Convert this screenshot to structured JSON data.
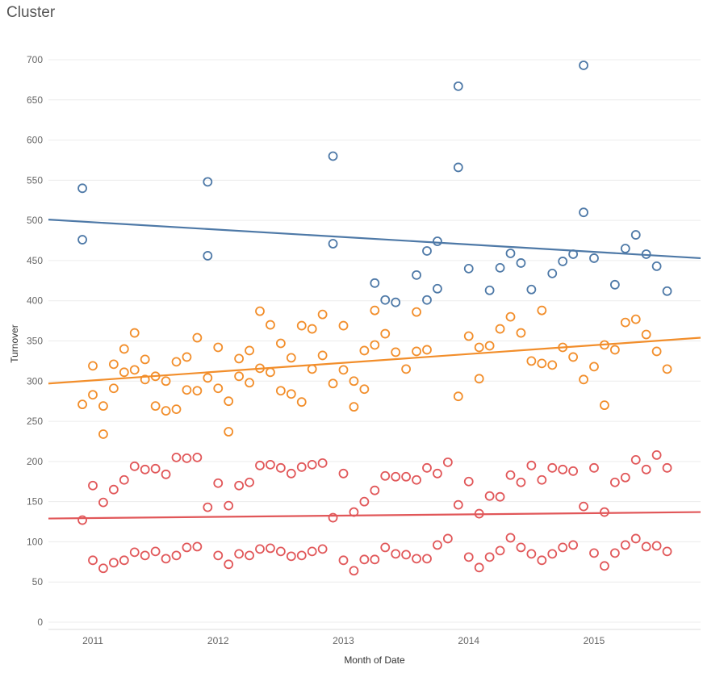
{
  "chart_data": {
    "type": "scatter",
    "title": "Cluster",
    "xlabel": "Month of Date",
    "ylabel": "Turnover",
    "ylim": [
      0,
      700
    ],
    "yticks": [
      0,
      50,
      100,
      150,
      200,
      250,
      300,
      350,
      400,
      450,
      500,
      550,
      600,
      650,
      700
    ],
    "xlim": [
      "2010-08",
      "2015-11"
    ],
    "xticks": [
      "2011",
      "2012",
      "2013",
      "2014",
      "2015"
    ],
    "grid": true,
    "legend": "none",
    "series": [
      {
        "color": "#4e79a7",
        "points": [
          [
            "2010-12",
            540
          ],
          [
            "2010-12",
            476
          ],
          [
            "2011-12",
            548
          ],
          [
            "2011-12",
            456
          ],
          [
            "2012-12",
            580
          ],
          [
            "2012-12",
            471
          ],
          [
            "2013-04",
            422
          ],
          [
            "2013-05",
            401
          ],
          [
            "2013-06",
            398
          ],
          [
            "2013-08",
            432
          ],
          [
            "2013-09",
            401
          ],
          [
            "2013-09",
            462
          ],
          [
            "2013-10",
            474
          ],
          [
            "2013-10",
            415
          ],
          [
            "2013-12",
            667
          ],
          [
            "2013-12",
            566
          ],
          [
            "2014-01",
            440
          ],
          [
            "2014-03",
            413
          ],
          [
            "2014-04",
            441
          ],
          [
            "2014-05",
            459
          ],
          [
            "2014-06",
            447
          ],
          [
            "2014-07",
            414
          ],
          [
            "2014-09",
            434
          ],
          [
            "2014-10",
            449
          ],
          [
            "2014-11",
            458
          ],
          [
            "2014-12",
            693
          ],
          [
            "2014-12",
            510
          ],
          [
            "2015-01",
            453
          ],
          [
            "2015-03",
            420
          ],
          [
            "2015-04",
            465
          ],
          [
            "2015-05",
            482
          ],
          [
            "2015-06",
            458
          ],
          [
            "2015-07",
            443
          ],
          [
            "2015-08",
            412
          ]
        ],
        "trend": [
          501,
          453
        ]
      },
      {
        "color": "#f28e2b",
        "points": [
          [
            "2010-12",
            271
          ],
          [
            "2011-01",
            319
          ],
          [
            "2011-01",
            283
          ],
          [
            "2011-02",
            269
          ],
          [
            "2011-02",
            234
          ],
          [
            "2011-03",
            321
          ],
          [
            "2011-03",
            291
          ],
          [
            "2011-04",
            340
          ],
          [
            "2011-04",
            311
          ],
          [
            "2011-05",
            360
          ],
          [
            "2011-05",
            314
          ],
          [
            "2011-06",
            327
          ],
          [
            "2011-06",
            302
          ],
          [
            "2011-07",
            306
          ],
          [
            "2011-07",
            269
          ],
          [
            "2011-08",
            300
          ],
          [
            "2011-08",
            263
          ],
          [
            "2011-09",
            324
          ],
          [
            "2011-09",
            265
          ],
          [
            "2011-10",
            330
          ],
          [
            "2011-10",
            289
          ],
          [
            "2011-11",
            354
          ],
          [
            "2011-11",
            288
          ],
          [
            "2011-12",
            304
          ],
          [
            "2012-01",
            342
          ],
          [
            "2012-01",
            291
          ],
          [
            "2012-02",
            275
          ],
          [
            "2012-02",
            237
          ],
          [
            "2012-03",
            328
          ],
          [
            "2012-03",
            306
          ],
          [
            "2012-04",
            338
          ],
          [
            "2012-04",
            298
          ],
          [
            "2012-05",
            387
          ],
          [
            "2012-05",
            316
          ],
          [
            "2012-06",
            370
          ],
          [
            "2012-06",
            311
          ],
          [
            "2012-07",
            347
          ],
          [
            "2012-07",
            288
          ],
          [
            "2012-08",
            329
          ],
          [
            "2012-08",
            284
          ],
          [
            "2012-09",
            369
          ],
          [
            "2012-09",
            274
          ],
          [
            "2012-10",
            365
          ],
          [
            "2012-10",
            315
          ],
          [
            "2012-11",
            383
          ],
          [
            "2012-11",
            332
          ],
          [
            "2012-12",
            297
          ],
          [
            "2013-01",
            369
          ],
          [
            "2013-01",
            314
          ],
          [
            "2013-02",
            300
          ],
          [
            "2013-02",
            268
          ],
          [
            "2013-03",
            338
          ],
          [
            "2013-03",
            290
          ],
          [
            "2013-04",
            388
          ],
          [
            "2013-04",
            345
          ],
          [
            "2013-05",
            359
          ],
          [
            "2013-06",
            336
          ],
          [
            "2013-07",
            315
          ],
          [
            "2013-08",
            386
          ],
          [
            "2013-08",
            337
          ],
          [
            "2013-09",
            339
          ],
          [
            "2013-12",
            281
          ],
          [
            "2014-01",
            356
          ],
          [
            "2014-02",
            342
          ],
          [
            "2014-02",
            303
          ],
          [
            "2014-03",
            344
          ],
          [
            "2014-04",
            365
          ],
          [
            "2014-05",
            380
          ],
          [
            "2014-06",
            360
          ],
          [
            "2014-07",
            325
          ],
          [
            "2014-08",
            388
          ],
          [
            "2014-08",
            322
          ],
          [
            "2014-09",
            320
          ],
          [
            "2014-10",
            342
          ],
          [
            "2014-11",
            330
          ],
          [
            "2014-12",
            302
          ],
          [
            "2015-01",
            318
          ],
          [
            "2015-02",
            345
          ],
          [
            "2015-02",
            270
          ],
          [
            "2015-03",
            339
          ],
          [
            "2015-04",
            373
          ],
          [
            "2015-05",
            377
          ],
          [
            "2015-06",
            358
          ],
          [
            "2015-07",
            337
          ],
          [
            "2015-08",
            315
          ]
        ],
        "trend": [
          297,
          354
        ]
      },
      {
        "color": "#e15759",
        "points": [
          [
            "2010-12",
            127
          ],
          [
            "2011-01",
            170
          ],
          [
            "2011-01",
            77
          ],
          [
            "2011-02",
            149
          ],
          [
            "2011-02",
            67
          ],
          [
            "2011-03",
            165
          ],
          [
            "2011-03",
            74
          ],
          [
            "2011-04",
            177
          ],
          [
            "2011-04",
            77
          ],
          [
            "2011-05",
            194
          ],
          [
            "2011-05",
            87
          ],
          [
            "2011-06",
            190
          ],
          [
            "2011-06",
            83
          ],
          [
            "2011-07",
            191
          ],
          [
            "2011-07",
            88
          ],
          [
            "2011-08",
            184
          ],
          [
            "2011-08",
            79
          ],
          [
            "2011-09",
            205
          ],
          [
            "2011-09",
            83
          ],
          [
            "2011-10",
            204
          ],
          [
            "2011-10",
            93
          ],
          [
            "2011-11",
            205
          ],
          [
            "2011-11",
            94
          ],
          [
            "2011-12",
            143
          ],
          [
            "2012-01",
            173
          ],
          [
            "2012-01",
            83
          ],
          [
            "2012-02",
            145
          ],
          [
            "2012-02",
            72
          ],
          [
            "2012-03",
            170
          ],
          [
            "2012-03",
            85
          ],
          [
            "2012-04",
            174
          ],
          [
            "2012-04",
            83
          ],
          [
            "2012-05",
            195
          ],
          [
            "2012-05",
            91
          ],
          [
            "2012-06",
            196
          ],
          [
            "2012-06",
            92
          ],
          [
            "2012-07",
            192
          ],
          [
            "2012-07",
            88
          ],
          [
            "2012-08",
            185
          ],
          [
            "2012-08",
            82
          ],
          [
            "2012-09",
            193
          ],
          [
            "2012-09",
            83
          ],
          [
            "2012-10",
            196
          ],
          [
            "2012-10",
            88
          ],
          [
            "2012-11",
            198
          ],
          [
            "2012-11",
            91
          ],
          [
            "2012-12",
            130
          ],
          [
            "2013-01",
            185
          ],
          [
            "2013-01",
            77
          ],
          [
            "2013-02",
            137
          ],
          [
            "2013-02",
            64
          ],
          [
            "2013-03",
            150
          ],
          [
            "2013-03",
            78
          ],
          [
            "2013-04",
            164
          ],
          [
            "2013-04",
            78
          ],
          [
            "2013-05",
            182
          ],
          [
            "2013-05",
            93
          ],
          [
            "2013-06",
            181
          ],
          [
            "2013-06",
            85
          ],
          [
            "2013-07",
            181
          ],
          [
            "2013-07",
            84
          ],
          [
            "2013-08",
            177
          ],
          [
            "2013-08",
            79
          ],
          [
            "2013-09",
            192
          ],
          [
            "2013-09",
            79
          ],
          [
            "2013-10",
            185
          ],
          [
            "2013-10",
            96
          ],
          [
            "2013-11",
            199
          ],
          [
            "2013-11",
            104
          ],
          [
            "2013-12",
            146
          ],
          [
            "2014-01",
            175
          ],
          [
            "2014-01",
            81
          ],
          [
            "2014-02",
            135
          ],
          [
            "2014-02",
            68
          ],
          [
            "2014-03",
            157
          ],
          [
            "2014-03",
            81
          ],
          [
            "2014-04",
            156
          ],
          [
            "2014-04",
            89
          ],
          [
            "2014-05",
            183
          ],
          [
            "2014-05",
            105
          ],
          [
            "2014-06",
            174
          ],
          [
            "2014-06",
            93
          ],
          [
            "2014-07",
            195
          ],
          [
            "2014-07",
            85
          ],
          [
            "2014-08",
            177
          ],
          [
            "2014-08",
            77
          ],
          [
            "2014-09",
            192
          ],
          [
            "2014-09",
            85
          ],
          [
            "2014-10",
            190
          ],
          [
            "2014-10",
            93
          ],
          [
            "2014-11",
            188
          ],
          [
            "2014-11",
            96
          ],
          [
            "2014-12",
            144
          ],
          [
            "2015-01",
            192
          ],
          [
            "2015-01",
            86
          ],
          [
            "2015-02",
            137
          ],
          [
            "2015-02",
            70
          ],
          [
            "2015-03",
            174
          ],
          [
            "2015-03",
            86
          ],
          [
            "2015-04",
            180
          ],
          [
            "2015-04",
            96
          ],
          [
            "2015-05",
            202
          ],
          [
            "2015-05",
            104
          ],
          [
            "2015-06",
            190
          ],
          [
            "2015-06",
            94
          ],
          [
            "2015-07",
            208
          ],
          [
            "2015-07",
            95
          ],
          [
            "2015-08",
            192
          ],
          [
            "2015-08",
            88
          ]
        ],
        "trend": [
          129,
          137
        ]
      }
    ]
  }
}
